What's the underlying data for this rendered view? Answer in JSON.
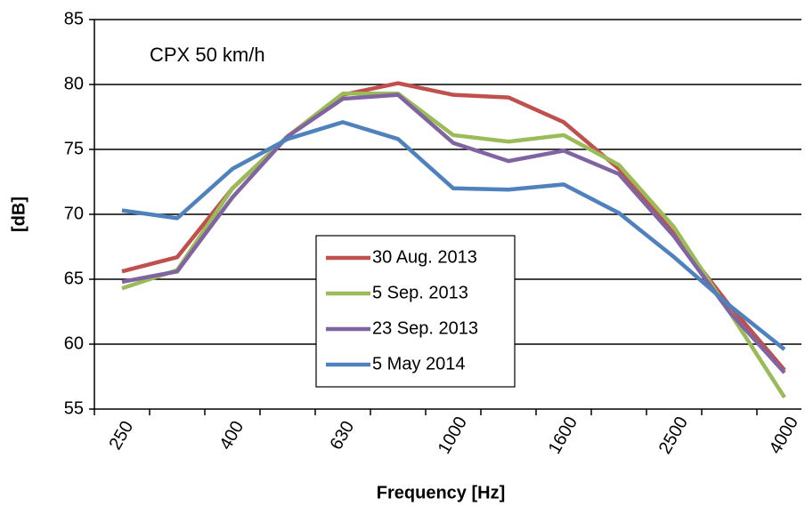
{
  "chart_data": {
    "type": "line",
    "annotation": "CPX 50  km/h",
    "x_label": "Frequency [Hz]",
    "y_label": "[dB]",
    "categories": [
      "250",
      null,
      "400",
      null,
      "630",
      null,
      "1000",
      null,
      "1600",
      null,
      "2500",
      null,
      "4000"
    ],
    "series": [
      {
        "name": "30 Aug. 2013",
        "color": "#c0504d",
        "values": [
          65.6,
          66.7,
          72.0,
          76.0,
          79.2,
          80.1,
          79.2,
          79.0,
          77.1,
          73.5,
          68.5,
          63.0,
          58.0
        ]
      },
      {
        "name": "5 Sep. 2013",
        "color": "#9bbb59",
        "values": [
          64.3,
          65.7,
          72.0,
          76.0,
          79.3,
          79.3,
          76.1,
          75.6,
          76.1,
          73.8,
          69.0,
          62.5,
          55.9
        ]
      },
      {
        "name": "23 Sep. 2013",
        "color": "#8064a2",
        "values": [
          64.8,
          65.6,
          71.3,
          76.0,
          78.9,
          79.2,
          75.5,
          74.1,
          74.9,
          73.1,
          68.3,
          62.5,
          57.8
        ]
      },
      {
        "name": "5 May 2014",
        "color": "#4f81bd",
        "values": [
          70.3,
          69.7,
          73.5,
          75.8,
          77.1,
          75.8,
          72.0,
          71.9,
          72.3,
          70.1,
          66.7,
          63.0,
          59.6
        ]
      }
    ],
    "ylim": [
      55,
      85
    ],
    "yticks": [
      55,
      60,
      65,
      70,
      75,
      80,
      85
    ],
    "grid": true
  }
}
